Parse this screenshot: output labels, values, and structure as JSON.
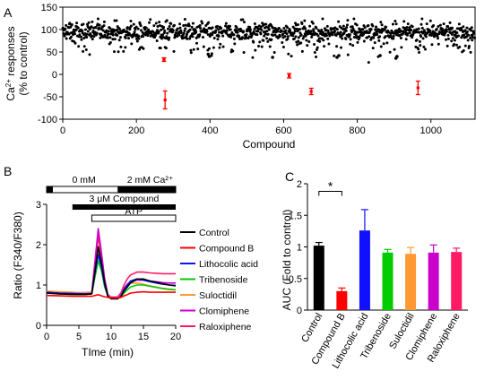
{
  "colors": {
    "compound_b": "#ff0000",
    "lithocolic_acid": "#1010ff",
    "tribenoside": "#00cc00",
    "suloctidil": "#ff9933",
    "clomiphene": "#cc00cc",
    "raloxiphene": "#ff1a66",
    "control": "#000000",
    "outlier": "#ff0000"
  },
  "chart_data": [
    {
      "panel_label": "A",
      "type": "scatter",
      "title": "",
      "xlabel": "Compound",
      "ylabel_line1": "Ca2+ responses",
      "ylabel_line2": "(% to control)",
      "xlim": [
        0,
        1120
      ],
      "ylim": [
        -100,
        150
      ],
      "xticks": [
        "0",
        "200",
        "400",
        "600",
        "800",
        "1000"
      ],
      "yticks": [
        "-100",
        "-50",
        "0",
        "50",
        "100",
        "150"
      ],
      "n_compounds": 1120,
      "highlighted": [
        {
          "x": 275,
          "y": 33,
          "err": 4
        },
        {
          "x": 278,
          "y": -57,
          "err": 20
        },
        {
          "x": 615,
          "y": -3,
          "err": 5
        },
        {
          "x": 675,
          "y": -38,
          "err": 7
        },
        {
          "x": 965,
          "y": -30,
          "err": 15
        }
      ],
      "dark_low_points": [
        {
          "x": 395,
          "y": 45
        },
        {
          "x": 398,
          "y": 40
        },
        {
          "x": 570,
          "y": 38
        },
        {
          "x": 745,
          "y": 38
        },
        {
          "x": 750,
          "y": 42
        },
        {
          "x": 862,
          "y": 42
        },
        {
          "x": 905,
          "y": 36
        },
        {
          "x": 908,
          "y": 40
        }
      ]
    },
    {
      "panel_label": "B",
      "type": "line",
      "title": "",
      "xlabel": "TIme (min)",
      "ylabel": "Ratio (F340/F380)",
      "xlim": [
        0,
        20
      ],
      "ylim": [
        0,
        3
      ],
      "xticks": [
        "0",
        "5",
        "10",
        "15",
        "20"
      ],
      "yticks": [
        "0",
        "1",
        "2",
        "3"
      ],
      "protocol": {
        "bar1_left": "0 mM",
        "bar1_right": "2 mM Ca²⁺",
        "bar2": "3 μM Compound",
        "bar3": "ATP",
        "ca_start": 0,
        "ca_switch": 11,
        "ca_end": 20,
        "compound_start": 4,
        "compound_end": 20,
        "atp_start": 7,
        "atp_end": 20
      },
      "legend": [
        "Control",
        "Compound B",
        "Lithocolic acid",
        "Tribenoside",
        "Suloctidil",
        "Clomiphene",
        "Raloxiphene"
      ],
      "series": [
        {
          "name": "Control",
          "color_key": "control",
          "x": [
            0,
            2,
            4,
            6,
            7,
            7.5,
            8,
            8.5,
            9,
            9.5,
            10,
            11,
            11.5,
            12,
            12.5,
            13,
            14,
            15,
            16,
            17,
            18,
            19,
            20
          ],
          "y": [
            0.8,
            0.78,
            0.77,
            0.77,
            0.78,
            1.35,
            1.95,
            1.55,
            1.05,
            0.72,
            0.66,
            0.66,
            0.72,
            0.85,
            0.95,
            1.05,
            1.15,
            1.15,
            1.1,
            1.07,
            1.03,
            1.0,
            0.98
          ]
        },
        {
          "name": "Compound B",
          "color_key": "compound_b",
          "x": [
            0,
            2,
            4,
            6,
            7,
            7.5,
            8,
            8.5,
            9,
            9.5,
            10,
            11,
            11.5,
            12,
            12.5,
            13,
            14,
            15,
            16,
            17,
            18,
            19,
            20
          ],
          "y": [
            0.74,
            0.73,
            0.72,
            0.72,
            0.72,
            0.74,
            0.76,
            0.73,
            0.71,
            0.69,
            0.68,
            0.68,
            0.69,
            0.73,
            0.76,
            0.8,
            0.82,
            0.83,
            0.82,
            0.82,
            0.82,
            0.82,
            0.82
          ]
        },
        {
          "name": "Lithocolic acid",
          "color_key": "lithocolic_acid",
          "x": [
            0,
            2,
            4,
            6,
            7,
            7.5,
            8,
            8.5,
            9,
            9.5,
            10,
            11,
            11.5,
            12,
            12.5,
            13,
            14,
            15,
            16,
            17,
            18,
            19,
            20
          ],
          "y": [
            0.82,
            0.8,
            0.79,
            0.78,
            0.79,
            1.3,
            1.75,
            1.45,
            1.0,
            0.72,
            0.66,
            0.66,
            0.72,
            0.88,
            1.0,
            1.1,
            1.15,
            1.12,
            1.08,
            1.05,
            1.02,
            1.0,
            0.99
          ]
        },
        {
          "name": "Tribenoside",
          "color_key": "tribenoside",
          "x": [
            0,
            2,
            4,
            6,
            7,
            7.5,
            8,
            8.5,
            9,
            9.5,
            10,
            11,
            11.5,
            12,
            12.5,
            13,
            14,
            15,
            16,
            17,
            18,
            19,
            20
          ],
          "y": [
            0.8,
            0.78,
            0.77,
            0.77,
            0.78,
            1.2,
            1.6,
            1.35,
            0.95,
            0.72,
            0.66,
            0.66,
            0.71,
            0.8,
            0.88,
            0.95,
            1.0,
            1.0,
            0.97,
            0.94,
            0.91,
            0.89,
            0.88
          ]
        },
        {
          "name": "Suloctidil",
          "color_key": "suloctidil",
          "x": [
            0,
            2,
            4,
            6,
            7,
            7.5,
            8,
            8.5,
            9,
            9.5,
            10,
            11,
            11.5,
            12,
            12.5,
            13,
            14,
            15,
            16,
            17,
            18,
            19,
            20
          ],
          "y": [
            0.85,
            0.83,
            0.82,
            0.8,
            0.82,
            1.3,
            1.85,
            1.5,
            1.02,
            0.74,
            0.68,
            0.68,
            0.74,
            0.88,
            0.98,
            1.05,
            1.05,
            1.02,
            0.98,
            0.95,
            0.92,
            0.9,
            0.88
          ]
        },
        {
          "name": "Clomiphene",
          "color_key": "clomiphene",
          "x": [
            0,
            2,
            4,
            6,
            7,
            7.5,
            8,
            8.5,
            9,
            9.5,
            10,
            11,
            11.5,
            12,
            12.5,
            13,
            14,
            15,
            16,
            17,
            18,
            19,
            20
          ],
          "y": [
            0.84,
            0.82,
            0.81,
            0.81,
            0.82,
            1.6,
            2.4,
            1.8,
            1.15,
            0.76,
            0.7,
            0.7,
            0.78,
            0.92,
            1.02,
            1.08,
            1.12,
            1.12,
            1.1,
            1.08,
            1.06,
            1.05,
            1.05
          ]
        },
        {
          "name": "Raloxiphene",
          "color_key": "raloxiphene",
          "x": [
            0,
            2,
            4,
            6,
            7,
            7.5,
            8,
            8.5,
            9,
            9.5,
            10,
            11,
            11.5,
            12,
            12.5,
            13,
            14,
            15,
            16,
            17,
            18,
            19,
            20
          ],
          "y": [
            0.82,
            0.8,
            0.79,
            0.78,
            0.79,
            1.5,
            2.2,
            1.7,
            1.1,
            0.75,
            0.7,
            0.7,
            0.8,
            1.0,
            1.15,
            1.25,
            1.32,
            1.32,
            1.3,
            1.29,
            1.28,
            1.28,
            1.28
          ]
        }
      ]
    },
    {
      "panel_label": "C",
      "type": "bar",
      "title": "",
      "xlabel": "",
      "ylabel": "AUC (Fold to control)",
      "ylim": [
        0,
        2
      ],
      "yticks": [
        "0",
        "0.5",
        "1",
        "1.5",
        "2"
      ],
      "categories": [
        "Control",
        "Compound B",
        "Lithocolic acid",
        "Tribenoside",
        "Suloctidil",
        "Clomiphene",
        "Raloxiphene"
      ],
      "values": [
        1.02,
        0.3,
        1.26,
        0.91,
        0.89,
        0.91,
        0.92
      ],
      "errors": [
        0.05,
        0.05,
        0.33,
        0.05,
        0.1,
        0.12,
        0.06
      ],
      "bar_color_keys": [
        "control",
        "compound_b",
        "lithocolic_acid",
        "tribenoside",
        "suloctidil",
        "clomiphene",
        "raloxiphene"
      ],
      "significance": {
        "from": 0,
        "to": 1,
        "label": "*"
      }
    }
  ]
}
